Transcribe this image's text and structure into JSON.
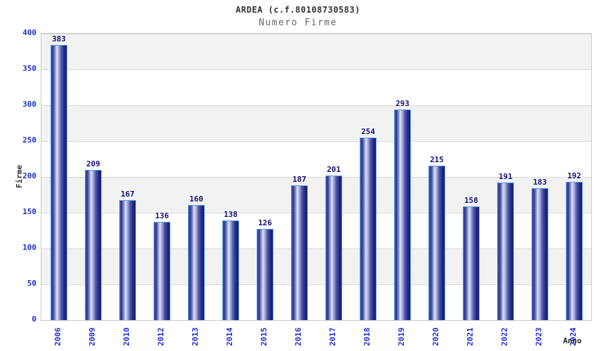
{
  "chart_data": {
    "type": "bar",
    "title": "ARDEA (c.f.80108730583)",
    "subtitle": "Numero Firme",
    "xlabel": "Anno",
    "ylabel": "Firme",
    "categories": [
      "2006",
      "2009",
      "2010",
      "2012",
      "2013",
      "2014",
      "2015",
      "2016",
      "2017",
      "2018",
      "2019",
      "2020",
      "2021",
      "2022",
      "2023",
      "2024"
    ],
    "values": [
      383,
      209,
      167,
      136,
      160,
      138,
      126,
      187,
      201,
      254,
      293,
      215,
      158,
      191,
      183,
      192
    ],
    "ylim": [
      0,
      400
    ],
    "ytick_step": 50,
    "yticks": [
      0,
      50,
      100,
      150,
      200,
      250,
      300,
      350,
      400
    ],
    "grid": "horizontal-bands-every-50",
    "legend": "none",
    "bar_labels_shown": true,
    "x_labels_rotation_deg": 90,
    "style": {
      "tick_label_color": "#2230cc",
      "bar_value_color": "#141478",
      "bar_border_color": "#5b9ee0",
      "bar_gradient": [
        "#4550a5",
        "#2d3892",
        "#7d86c8",
        "#dfe2f4",
        "#aab1e2",
        "#4d57a8",
        "#232c86",
        "#141b6e"
      ],
      "band_color_dark": "#f2f2f2",
      "band_color_light": "#ffffff",
      "gridline_color": "#d9d9d9",
      "plot_border_color": "#cccccc",
      "title_color": "#333333",
      "subtitle_color": "#666666",
      "axis_title_color": "#333333"
    }
  }
}
